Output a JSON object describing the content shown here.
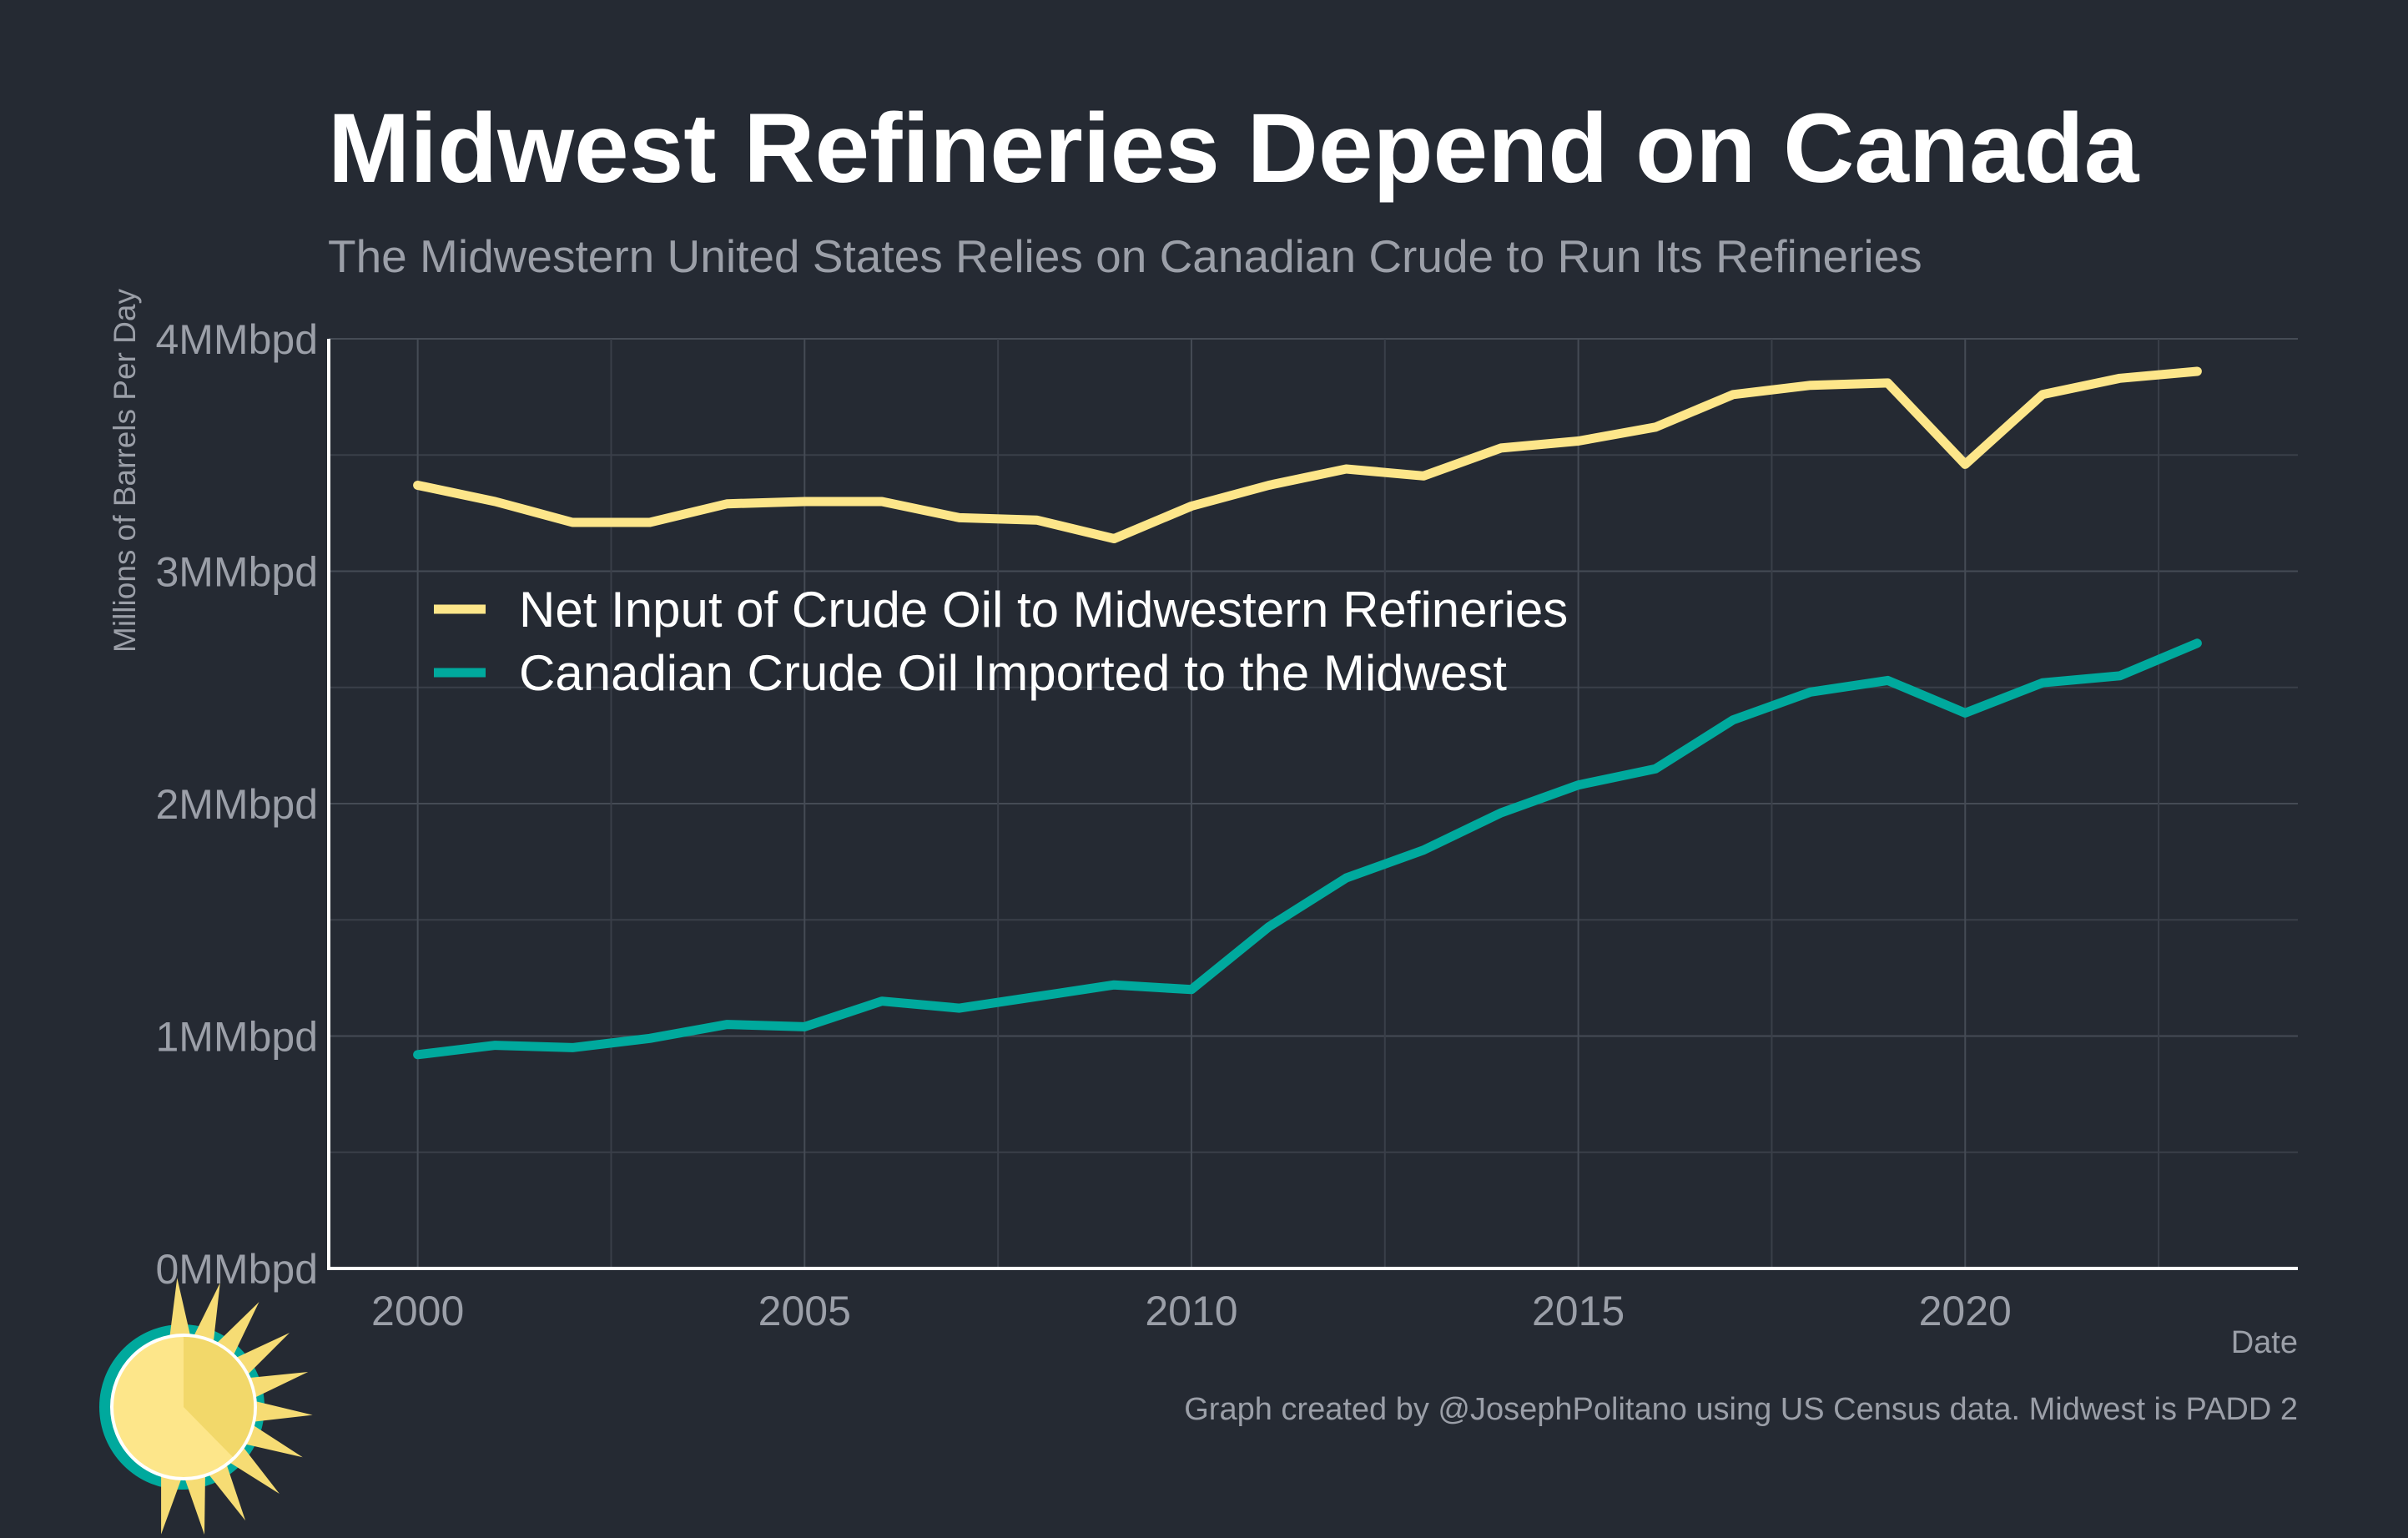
{
  "chart_data": {
    "type": "line",
    "title": "Midwest Refineries Depend on Canada",
    "subtitle": "The Midwestern United States Relies on Canadian Crude to Run Its Refineries",
    "xlabel": "Date",
    "ylabel": "Millions of Barrels Per Day",
    "x": [
      2000,
      2001,
      2002,
      2003,
      2004,
      2005,
      2006,
      2007,
      2008,
      2009,
      2010,
      2011,
      2012,
      2013,
      2014,
      2015,
      2016,
      2017,
      2018,
      2019,
      2020,
      2021,
      2022,
      2023
    ],
    "series": [
      {
        "name": "Net Input of Crude Oil to Midwestern Refineries",
        "color": "#fde68a",
        "values": [
          3.37,
          3.3,
          3.21,
          3.21,
          3.29,
          3.3,
          3.3,
          3.23,
          3.22,
          3.14,
          3.28,
          3.37,
          3.44,
          3.41,
          3.53,
          3.56,
          3.62,
          3.76,
          3.8,
          3.81,
          3.46,
          3.76,
          3.83,
          3.86
        ]
      },
      {
        "name": "Canadian Crude Oil Imported to the Midwest",
        "color": "#00a99d",
        "values": [
          0.92,
          0.96,
          0.95,
          0.99,
          1.05,
          1.04,
          1.15,
          1.12,
          1.17,
          1.22,
          1.2,
          1.47,
          1.68,
          1.8,
          1.96,
          2.08,
          2.15,
          2.36,
          2.48,
          2.53,
          2.39,
          2.52,
          2.55,
          2.69
        ]
      }
    ],
    "xlim": [
      1998.85,
      2024.3
    ],
    "ylim": [
      0,
      4
    ],
    "xticks": [
      2000,
      2005,
      2010,
      2015,
      2020
    ],
    "yticks": [
      0,
      1,
      2,
      3,
      4
    ],
    "ytick_labels": [
      "0MMbpd",
      "1MMbpd",
      "2MMbpd",
      "3MMbpd",
      "4MMbpd"
    ],
    "grid": true,
    "legend_position": "top-left"
  },
  "caption": "Graph created by @JosephPolitano using US Census data. Midwest is PADD 2",
  "logo": {
    "icon": "sun-icon",
    "colors": [
      "#00a99d",
      "#fde68a",
      "#f6dc74"
    ]
  },
  "colors": {
    "background": "#252a33",
    "grid": "#454b55",
    "axis": "#ffffff",
    "muted_text": "#9b9fa8"
  }
}
